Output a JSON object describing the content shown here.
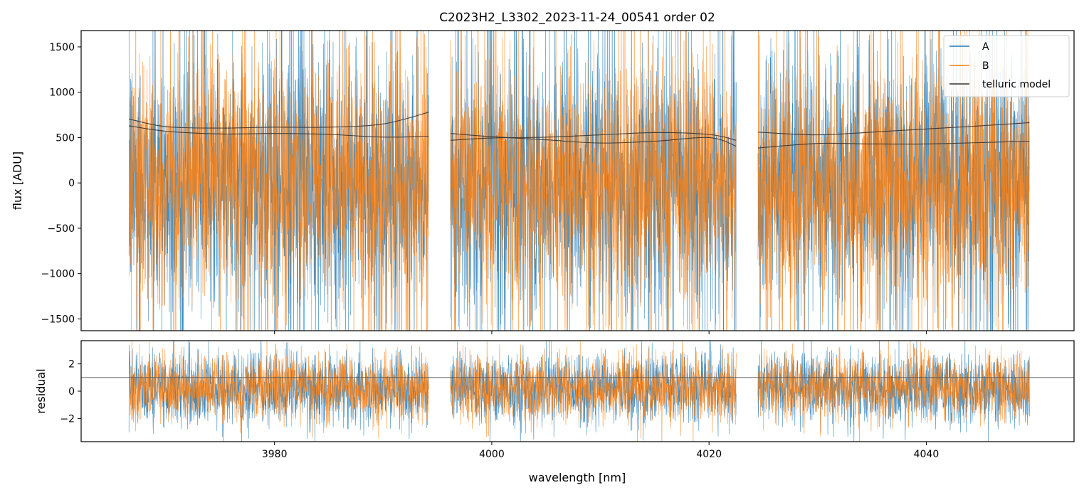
{
  "chart_data": [
    {
      "type": "line",
      "panel": "top",
      "title": "C2023H2_L3302_2023-11-24_00541  order 02",
      "xlabel": "",
      "ylabel": "flux [ADU]",
      "xlim": [
        3962.2,
        4053.6
      ],
      "ylim": [
        -1630,
        1680
      ],
      "x_ticks": [
        3980,
        4000,
        4020,
        4040
      ],
      "y_ticks": [
        -1500,
        -1000,
        -500,
        0,
        500,
        1000,
        1500
      ],
      "y_tick_labels": [
        "−1500",
        "−1000",
        "−500",
        "0",
        "500",
        "1000",
        "1500"
      ],
      "grid": false,
      "legend_placement": "top-right",
      "legend": [
        "A",
        "B",
        "telluric model"
      ],
      "segments": [
        [
          3966.6,
          3994.2
        ],
        [
          3996.2,
          4022.5
        ],
        [
          4024.5,
          4049.5
        ]
      ],
      "series": [
        {
          "name": "A",
          "color": "#1f77b4",
          "description_values": {
            "center": 0,
            "typical_spread": 700,
            "clipped_beyond_axes": true
          }
        },
        {
          "name": "B",
          "color": "#ff7f0e",
          "description_values": {
            "center": 0,
            "typical_spread": 650,
            "clipped_beyond_axes": true
          }
        },
        {
          "name": "telluric model",
          "color": "#333333",
          "curves": [
            {
              "x": [
                3966.6,
                3970,
                3975,
                3980,
                3985,
                3990,
                3994.2
              ],
              "y": [
                705,
                620,
                605,
                615,
                615,
                650,
                780
              ]
            },
            {
              "x": [
                3966.6,
                3970,
                3975,
                3980,
                3985,
                3990,
                3994.2
              ],
              "y": [
                630,
                570,
                540,
                545,
                535,
                505,
                515
              ]
            },
            {
              "x": [
                3996.2,
                4000,
                4005,
                4010,
                4015,
                4020,
                4022.5
              ],
              "y": [
                545,
                510,
                475,
                440,
                460,
                500,
                405
              ]
            },
            {
              "x": [
                3996.2,
                4000,
                4005,
                4010,
                4015,
                4020,
                4022.5
              ],
              "y": [
                470,
                495,
                505,
                530,
                555,
                535,
                470
              ]
            },
            {
              "x": [
                4024.5,
                4030,
                4035,
                4040,
                4045,
                4049.5
              ],
              "y": [
                560,
                530,
                560,
                595,
                630,
                665
              ]
            },
            {
              "x": [
                4024.5,
                4030,
                4035,
                4040,
                4045,
                4049.5
              ],
              "y": [
                385,
                435,
                430,
                430,
                445,
                460
              ]
            }
          ]
        }
      ]
    },
    {
      "type": "line",
      "panel": "bottom",
      "title": "",
      "xlabel": "wavelength [nm]",
      "ylabel": "residual",
      "xlim": [
        3962.2,
        4053.6
      ],
      "ylim": [
        -3.7,
        3.7
      ],
      "x_ticks": [
        3980,
        4000,
        4020,
        4040
      ],
      "x_tick_labels": [
        "3980",
        "4000",
        "4020",
        "4040"
      ],
      "y_ticks": [
        -2,
        0,
        2
      ],
      "y_tick_labels": [
        "−2",
        "0",
        "2"
      ],
      "hline": 1,
      "grid": false,
      "series": [
        {
          "name": "A",
          "color": "#1f77b4",
          "description_values": {
            "center": 0.2,
            "typical_spread": 1.3
          }
        },
        {
          "name": "B",
          "color": "#ff7f0e",
          "description_values": {
            "center": 0.3,
            "typical_spread": 1.2
          }
        }
      ]
    }
  ]
}
